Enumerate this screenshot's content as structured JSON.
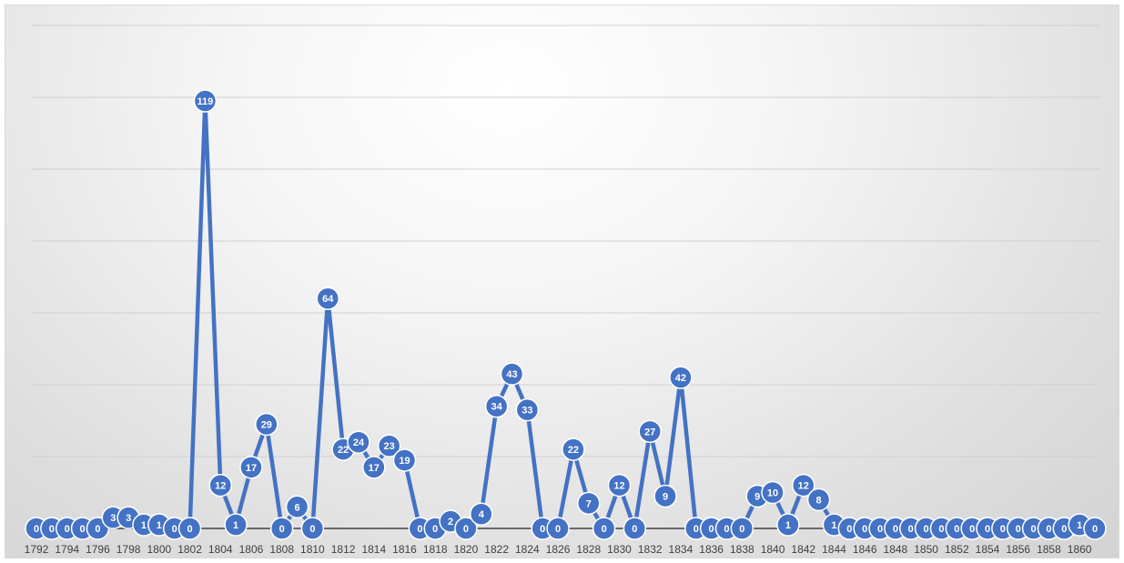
{
  "chart_data": {
    "type": "line",
    "title": "",
    "xlabel": "",
    "ylabel": "",
    "x": [
      1792,
      1793,
      1794,
      1795,
      1796,
      1797,
      1798,
      1799,
      1800,
      1801,
      1802,
      1803,
      1804,
      1805,
      1806,
      1807,
      1808,
      1809,
      1810,
      1811,
      1812,
      1813,
      1814,
      1815,
      1816,
      1817,
      1818,
      1819,
      1820,
      1821,
      1822,
      1823,
      1824,
      1825,
      1826,
      1827,
      1828,
      1829,
      1830,
      1831,
      1832,
      1833,
      1834,
      1835,
      1836,
      1837,
      1838,
      1839,
      1840,
      1841,
      1842,
      1843,
      1844,
      1845,
      1846,
      1847,
      1848,
      1849,
      1850,
      1851,
      1852,
      1853,
      1854,
      1855,
      1856,
      1857,
      1858,
      1859,
      1860,
      1861
    ],
    "series": [
      {
        "values": [
          0,
          0,
          0,
          0,
          0,
          3,
          3,
          1,
          1,
          0,
          0,
          119,
          12,
          1,
          17,
          29,
          0,
          6,
          0,
          64,
          22,
          24,
          17,
          23,
          19,
          0,
          0,
          2,
          0,
          4,
          34,
          43,
          33,
          0,
          0,
          22,
          7,
          0,
          12,
          0,
          27,
          9,
          42,
          0,
          0,
          0,
          0,
          9,
          10,
          1,
          12,
          8,
          1,
          0,
          0,
          0,
          0,
          0,
          0,
          0,
          0,
          0,
          0,
          0,
          0,
          0,
          0,
          0,
          1,
          0
        ],
        "color": "#4472C4"
      }
    ],
    "xtick_labels": [
      "1792",
      "1794",
      "1796",
      "1798",
      "1800",
      "1802",
      "1804",
      "1806",
      "1808",
      "1810",
      "1812",
      "1814",
      "1816",
      "1818",
      "1820",
      "1822",
      "1824",
      "1826",
      "1828",
      "1830",
      "1832",
      "1834",
      "1836",
      "1838",
      "1840",
      "1842",
      "1844",
      "1846",
      "1848",
      "1850",
      "1852",
      "1854",
      "1856",
      "1858",
      "1860"
    ],
    "ylim": [
      0,
      140
    ],
    "y_gridline_step": 20,
    "grid": true,
    "legend": "none",
    "data_labels": true
  }
}
